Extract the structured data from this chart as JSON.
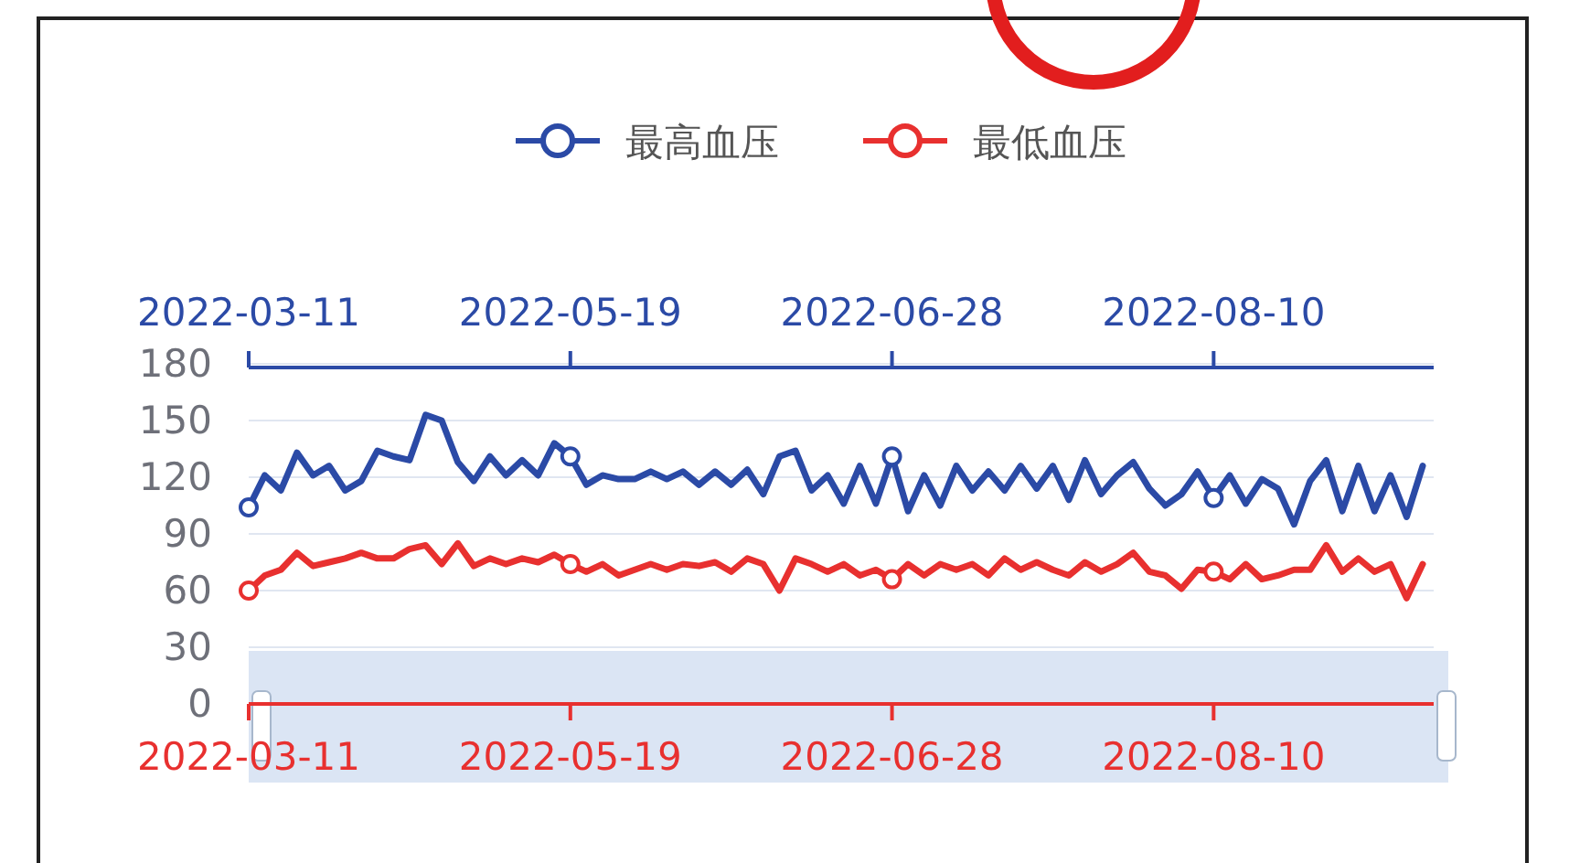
{
  "chart_data": {
    "type": "line",
    "categories": [
      "2022-03-11",
      null,
      null,
      null,
      null,
      null,
      null,
      null,
      null,
      null,
      null,
      null,
      null,
      null,
      null,
      null,
      null,
      null,
      null,
      null,
      "2022-05-19",
      null,
      null,
      null,
      null,
      null,
      null,
      null,
      null,
      null,
      null,
      null,
      null,
      null,
      null,
      null,
      null,
      null,
      null,
      null,
      "2022-06-28",
      null,
      null,
      null,
      null,
      null,
      null,
      null,
      null,
      null,
      null,
      null,
      null,
      null,
      null,
      null,
      null,
      null,
      null,
      null,
      "2022-08-10",
      null,
      null,
      null,
      null,
      null,
      null,
      null,
      null,
      null,
      null,
      null,
      null,
      null
    ],
    "series": [
      {
        "name": "最高血压",
        "color": "#2b4aa6",
        "values": [
          104,
          121,
          113,
          133,
          121,
          126,
          113,
          118,
          134,
          131,
          129,
          153,
          150,
          128,
          118,
          131,
          121,
          129,
          121,
          138,
          131,
          116,
          121,
          119,
          119,
          123,
          119,
          123,
          116,
          123,
          116,
          124,
          111,
          131,
          134,
          113,
          121,
          106,
          126,
          106,
          131,
          102,
          121,
          105,
          126,
          113,
          123,
          113,
          126,
          114,
          126,
          108,
          129,
          111,
          121,
          128,
          114,
          105,
          111,
          123,
          109,
          121,
          106,
          119,
          114,
          95,
          118,
          129,
          102,
          126,
          102,
          121,
          99,
          126
        ]
      },
      {
        "name": "最低血压",
        "color": "#e8302f",
        "values": [
          60,
          68,
          71,
          80,
          73,
          75,
          77,
          80,
          77,
          77,
          82,
          84,
          74,
          85,
          73,
          77,
          74,
          77,
          75,
          79,
          74,
          70,
          74,
          68,
          71,
          74,
          71,
          74,
          73,
          75,
          70,
          77,
          74,
          60,
          77,
          74,
          70,
          74,
          68,
          71,
          66,
          74,
          68,
          74,
          71,
          74,
          68,
          77,
          71,
          75,
          71,
          68,
          75,
          70,
          74,
          80,
          70,
          68,
          61,
          71,
          70,
          66,
          74,
          66,
          68,
          71,
          71,
          84,
          70,
          77,
          70,
          74,
          56,
          74
        ]
      }
    ],
    "ylim": [
      0,
      180
    ],
    "yticks": [
      0,
      30,
      60,
      90,
      120,
      150,
      180
    ],
    "grid": "y",
    "legend": "top",
    "line_style": "solid"
  }
}
